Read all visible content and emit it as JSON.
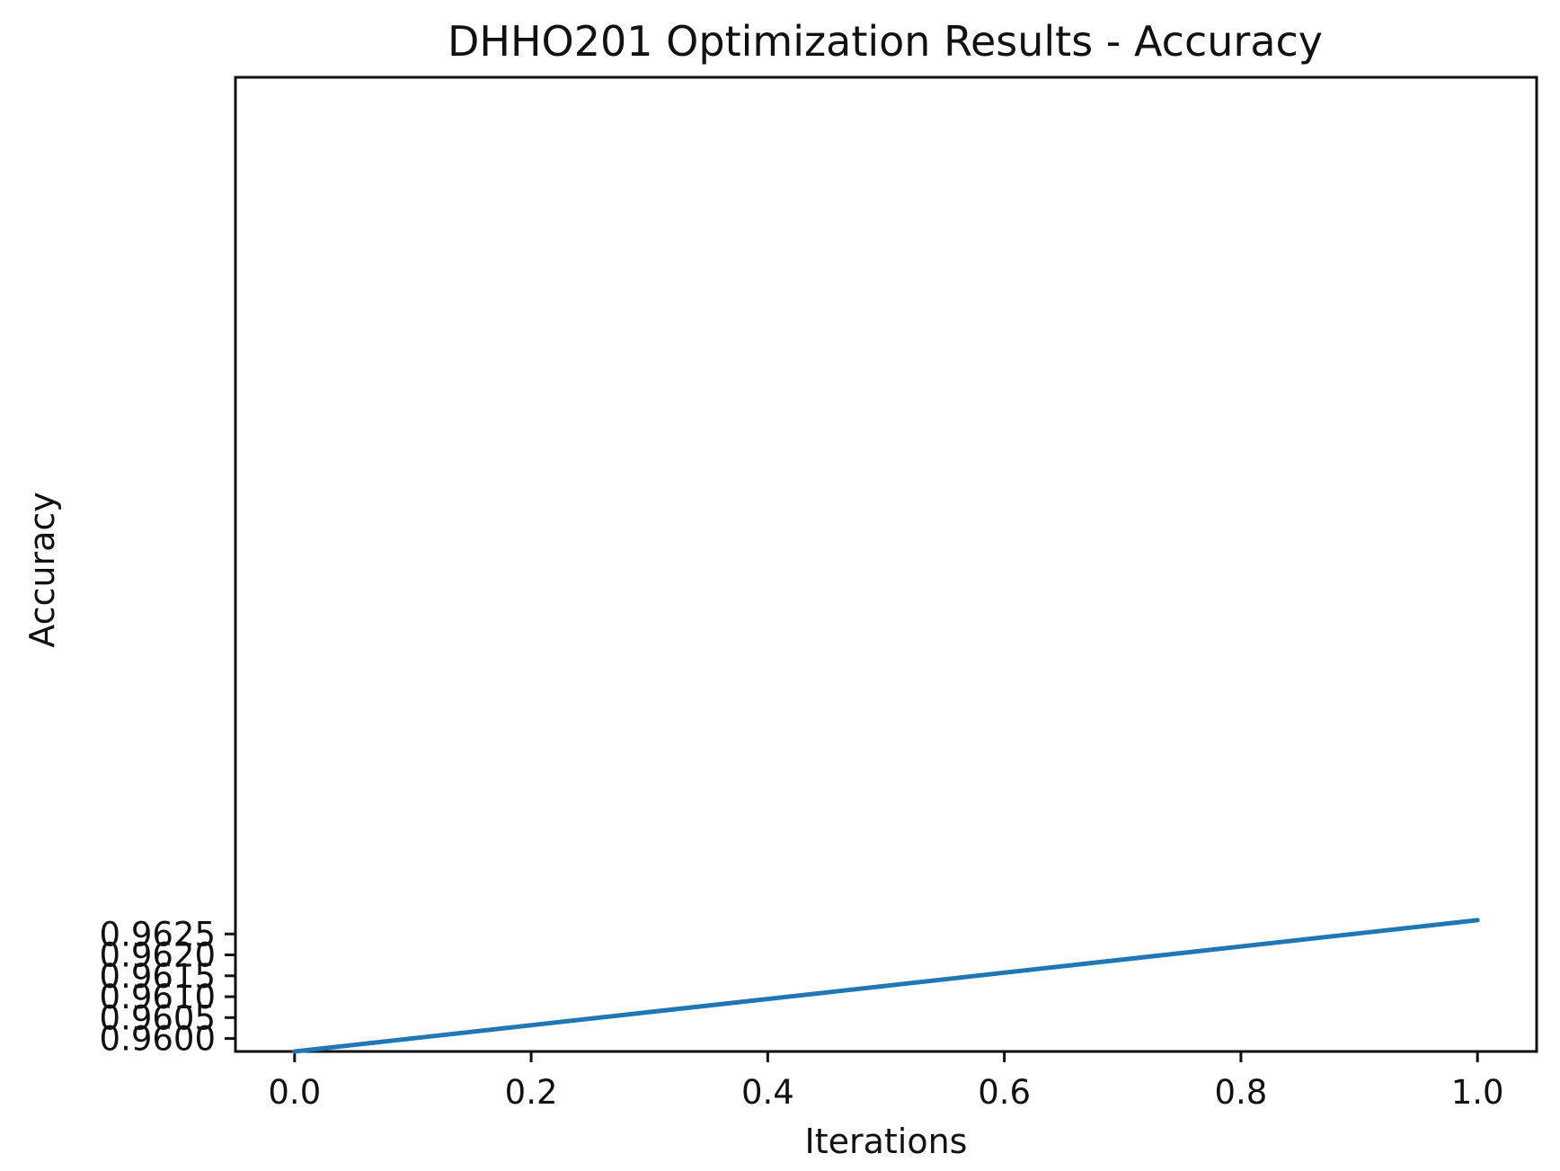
{
  "chart_data": {
    "type": "line",
    "title": "DHHO201 Optimization Results - Accuracy",
    "xlabel": "Iterations",
    "ylabel": "Accuracy",
    "xlim": [
      -0.05,
      1.05
    ],
    "ylim": [
      0.95969,
      0.98299
    ],
    "x_ticks": [
      0.0,
      0.2,
      0.4,
      0.6,
      0.8,
      1.0
    ],
    "x_tick_labels": [
      "0.0",
      "0.2",
      "0.4",
      "0.6",
      "0.8",
      "1.0"
    ],
    "y_ticks": [
      0.96,
      0.9605,
      0.961,
      0.9615,
      0.962,
      0.9625
    ],
    "y_tick_labels": [
      "0.9600",
      "0.9605",
      "0.9610",
      "0.9615",
      "0.9620",
      "0.9625"
    ],
    "grid": false,
    "series": [
      {
        "color": "#1f77b4",
        "x": [
          0.0,
          1.0
        ],
        "y": [
          0.95969,
          0.96283
        ]
      }
    ]
  }
}
